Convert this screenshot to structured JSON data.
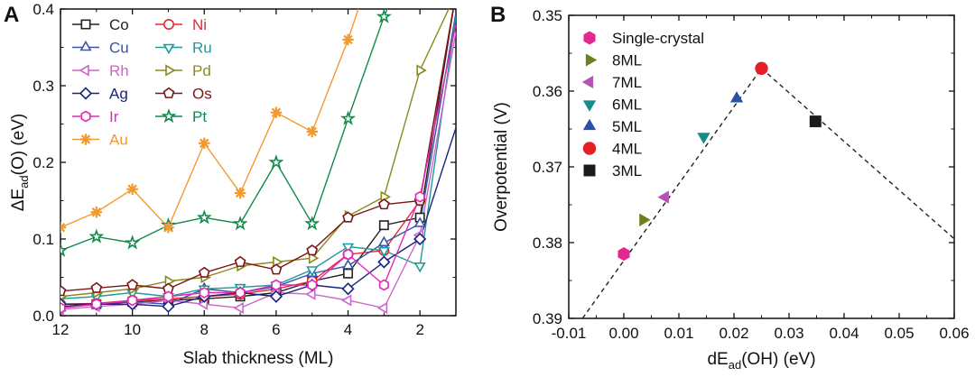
{
  "chart_data": [
    {
      "panel": "A",
      "type": "line",
      "xlabel": "Slab thickness (ML)",
      "ylabel_main": "ΔE",
      "ylabel_sub": "ad",
      "ylabel_tail": "(O) (eV)",
      "xlim": [
        12,
        1
      ],
      "ylim": [
        0,
        0.4
      ],
      "x_ticks": [
        12,
        10,
        8,
        6,
        4,
        2
      ],
      "y_ticks": [
        0.0,
        0.1,
        0.2,
        0.3,
        0.4
      ],
      "x_tick_labels": [
        "12",
        "10",
        "8",
        "6",
        "4",
        "2"
      ],
      "y_tick_labels": [
        "0.0",
        "0.1",
        "0.2",
        "0.3",
        "0.4"
      ],
      "x": [
        12,
        11,
        10,
        9,
        8,
        7,
        6,
        5,
        4,
        3,
        2,
        1
      ],
      "series": [
        {
          "name": "Co",
          "color": "#222222",
          "marker": "square",
          "values": [
            0.012,
            0.015,
            0.018,
            0.02,
            0.022,
            0.025,
            0.03,
            0.045,
            0.055,
            0.118,
            0.128,
            0.42
          ]
        },
        {
          "name": "Ni",
          "color": "#e8282d",
          "marker": "circle",
          "values": [
            0.015,
            0.016,
            0.02,
            0.022,
            0.025,
            0.028,
            0.035,
            0.045,
            0.08,
            0.085,
            0.15,
            0.42
          ]
        },
        {
          "name": "Cu",
          "color": "#3a52a8",
          "marker": "triangle-up",
          "values": [
            0.01,
            0.015,
            0.018,
            0.015,
            0.035,
            0.03,
            0.038,
            0.055,
            0.065,
            0.095,
            0.12,
            0.395
          ]
        },
        {
          "name": "Ru",
          "color": "#1f9a9a",
          "marker": "triangle-down",
          "values": [
            0.022,
            0.025,
            0.03,
            0.025,
            0.035,
            0.037,
            0.04,
            0.06,
            0.09,
            0.085,
            0.065,
            0.39
          ]
        },
        {
          "name": "Rh",
          "color": "#cc66cc",
          "marker": "triangle-left",
          "values": [
            0.008,
            0.012,
            0.015,
            0.02,
            0.015,
            0.01,
            0.03,
            0.028,
            0.02,
            0.01,
            0.105,
            0.37
          ]
        },
        {
          "name": "Pd",
          "color": "#8a8a1e",
          "marker": "triangle-right",
          "values": [
            0.025,
            0.03,
            0.035,
            0.045,
            0.05,
            0.065,
            0.07,
            0.075,
            0.13,
            0.155,
            0.32,
            0.42
          ]
        },
        {
          "name": "Ag",
          "color": "#1a237e",
          "marker": "diamond",
          "values": [
            0.015,
            0.015,
            0.015,
            0.012,
            0.025,
            0.03,
            0.025,
            0.04,
            0.035,
            0.07,
            0.1,
            0.245
          ]
        },
        {
          "name": "Os",
          "color": "#7a1616",
          "marker": "pentagon",
          "values": [
            0.032,
            0.036,
            0.04,
            0.035,
            0.056,
            0.07,
            0.06,
            0.085,
            0.128,
            0.145,
            0.15,
            0.42
          ]
        },
        {
          "name": "Ir",
          "color": "#e02ab3",
          "marker": "hexagon",
          "values": [
            0.01,
            0.015,
            0.02,
            0.025,
            0.03,
            0.03,
            0.04,
            0.04,
            0.08,
            0.04,
            0.155,
            0.38
          ]
        },
        {
          "name": "Pt",
          "color": "#118a4a",
          "marker": "star",
          "values": [
            0.085,
            0.103,
            0.095,
            0.118,
            0.128,
            0.12,
            0.2,
            0.12,
            0.257,
            0.39,
            0.5,
            null
          ]
        },
        {
          "name": "Au",
          "color": "#f29a2e",
          "marker": "asterisk",
          "values": [
            0.115,
            0.135,
            0.165,
            0.115,
            0.225,
            0.16,
            0.265,
            0.24,
            0.36,
            0.5,
            null,
            null
          ]
        }
      ]
    },
    {
      "panel": "B",
      "type": "scatter",
      "xlabel_main": "dE",
      "xlabel_sub": "ad",
      "xlabel_tail": "(OH) (eV)",
      "ylabel": "Overpotential (V)",
      "xlim": [
        -0.01,
        0.06
      ],
      "ylim": [
        0.39,
        0.35
      ],
      "x_ticks": [
        -0.01,
        0.0,
        0.01,
        0.02,
        0.03,
        0.04,
        0.05,
        0.06
      ],
      "y_ticks": [
        0.35,
        0.36,
        0.37,
        0.38,
        0.39
      ],
      "x_tick_labels": [
        "-0.01",
        "0.00",
        "0.01",
        "0.02",
        "0.03",
        "0.04",
        "0.05",
        "0.06"
      ],
      "y_tick_labels": [
        "0.35",
        "0.36",
        "0.37",
        "0.38",
        "0.39"
      ],
      "points": [
        {
          "name": "Single-crystal",
          "x": 0.0,
          "y": 0.3815,
          "color": "#e4288f",
          "marker": "hexagon"
        },
        {
          "name": "8ML",
          "x": 0.0035,
          "y": 0.377,
          "color": "#6f7f1f",
          "marker": "triangle-right"
        },
        {
          "name": "7ML",
          "x": 0.0075,
          "y": 0.374,
          "color": "#b455b4",
          "marker": "triangle-left"
        },
        {
          "name": "6ML",
          "x": 0.0145,
          "y": 0.366,
          "color": "#178a8a",
          "marker": "triangle-down"
        },
        {
          "name": "5ML",
          "x": 0.0205,
          "y": 0.361,
          "color": "#2e4fa6",
          "marker": "triangle-up"
        },
        {
          "name": "4ML",
          "x": 0.025,
          "y": 0.357,
          "color": "#e61e24",
          "marker": "circle"
        },
        {
          "name": "3ML",
          "x": 0.0348,
          "y": 0.364,
          "color": "#1a1a1a",
          "marker": "square"
        }
      ],
      "volcano_lines": [
        {
          "from": [
            -0.0075,
            0.39
          ],
          "to": [
            0.025,
            0.357
          ]
        },
        {
          "from": [
            0.025,
            0.357
          ],
          "to": [
            0.06,
            0.3795
          ]
        }
      ]
    }
  ]
}
